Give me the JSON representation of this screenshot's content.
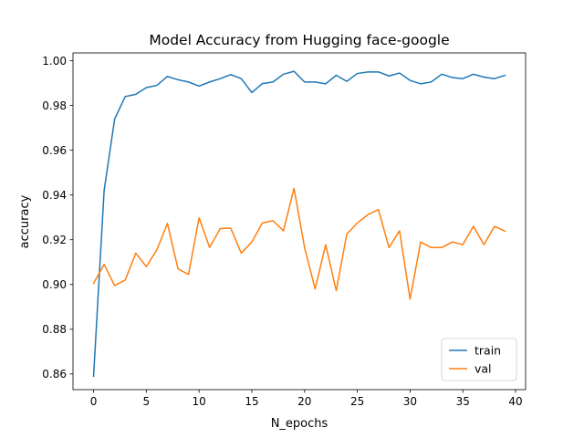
{
  "chart_data": {
    "type": "line",
    "title": "Model Accuracy from Hugging face-google",
    "xlabel": "N_epochs",
    "ylabel": "accuracy",
    "xlim": [
      -1.95,
      40.95
    ],
    "ylim": [
      0.853,
      1.0035
    ],
    "xticks": [
      0,
      5,
      10,
      15,
      20,
      25,
      30,
      35,
      40
    ],
    "yticks": [
      0.86,
      0.88,
      0.9,
      0.92,
      0.94,
      0.96,
      0.98,
      1.0
    ],
    "ytick_labels": [
      "0.86",
      "0.88",
      "0.90",
      "0.92",
      "0.94",
      "0.96",
      "0.98",
      "1.00"
    ],
    "grid": false,
    "legend_position": "lower-right",
    "x": [
      0,
      1,
      2,
      3,
      4,
      5,
      6,
      7,
      8,
      9,
      10,
      11,
      12,
      13,
      14,
      15,
      16,
      17,
      18,
      19,
      20,
      21,
      22,
      23,
      24,
      25,
      26,
      27,
      28,
      29,
      30,
      31,
      32,
      33,
      34,
      35,
      36,
      37,
      38,
      39
    ],
    "series": [
      {
        "name": "train",
        "color": "#1f77b4",
        "values": [
          0.859,
          0.942,
          0.974,
          0.984,
          0.985,
          0.988,
          0.989,
          0.993,
          0.9915,
          0.9905,
          0.9887,
          0.9905,
          0.992,
          0.9938,
          0.992,
          0.9858,
          0.9898,
          0.9905,
          0.994,
          0.9953,
          0.9905,
          0.9905,
          0.9897,
          0.9935,
          0.9908,
          0.9943,
          0.995,
          0.995,
          0.9932,
          0.9945,
          0.9912,
          0.9897,
          0.9905,
          0.994,
          0.9925,
          0.992,
          0.994,
          0.9927,
          0.992,
          0.9935
        ]
      },
      {
        "name": "val",
        "color": "#ff7f0e",
        "values": [
          0.9005,
          0.909,
          0.8995,
          0.902,
          0.914,
          0.908,
          0.9155,
          0.9273,
          0.907,
          0.9045,
          0.9298,
          0.9165,
          0.925,
          0.9252,
          0.914,
          0.919,
          0.9275,
          0.9285,
          0.924,
          0.943,
          0.9165,
          0.898,
          0.9178,
          0.8972,
          0.9225,
          0.9275,
          0.9312,
          0.9335,
          0.9165,
          0.924,
          0.8935,
          0.919,
          0.9165,
          0.9165,
          0.919,
          0.9178,
          0.926,
          0.9178,
          0.926,
          0.9238
        ]
      }
    ]
  }
}
